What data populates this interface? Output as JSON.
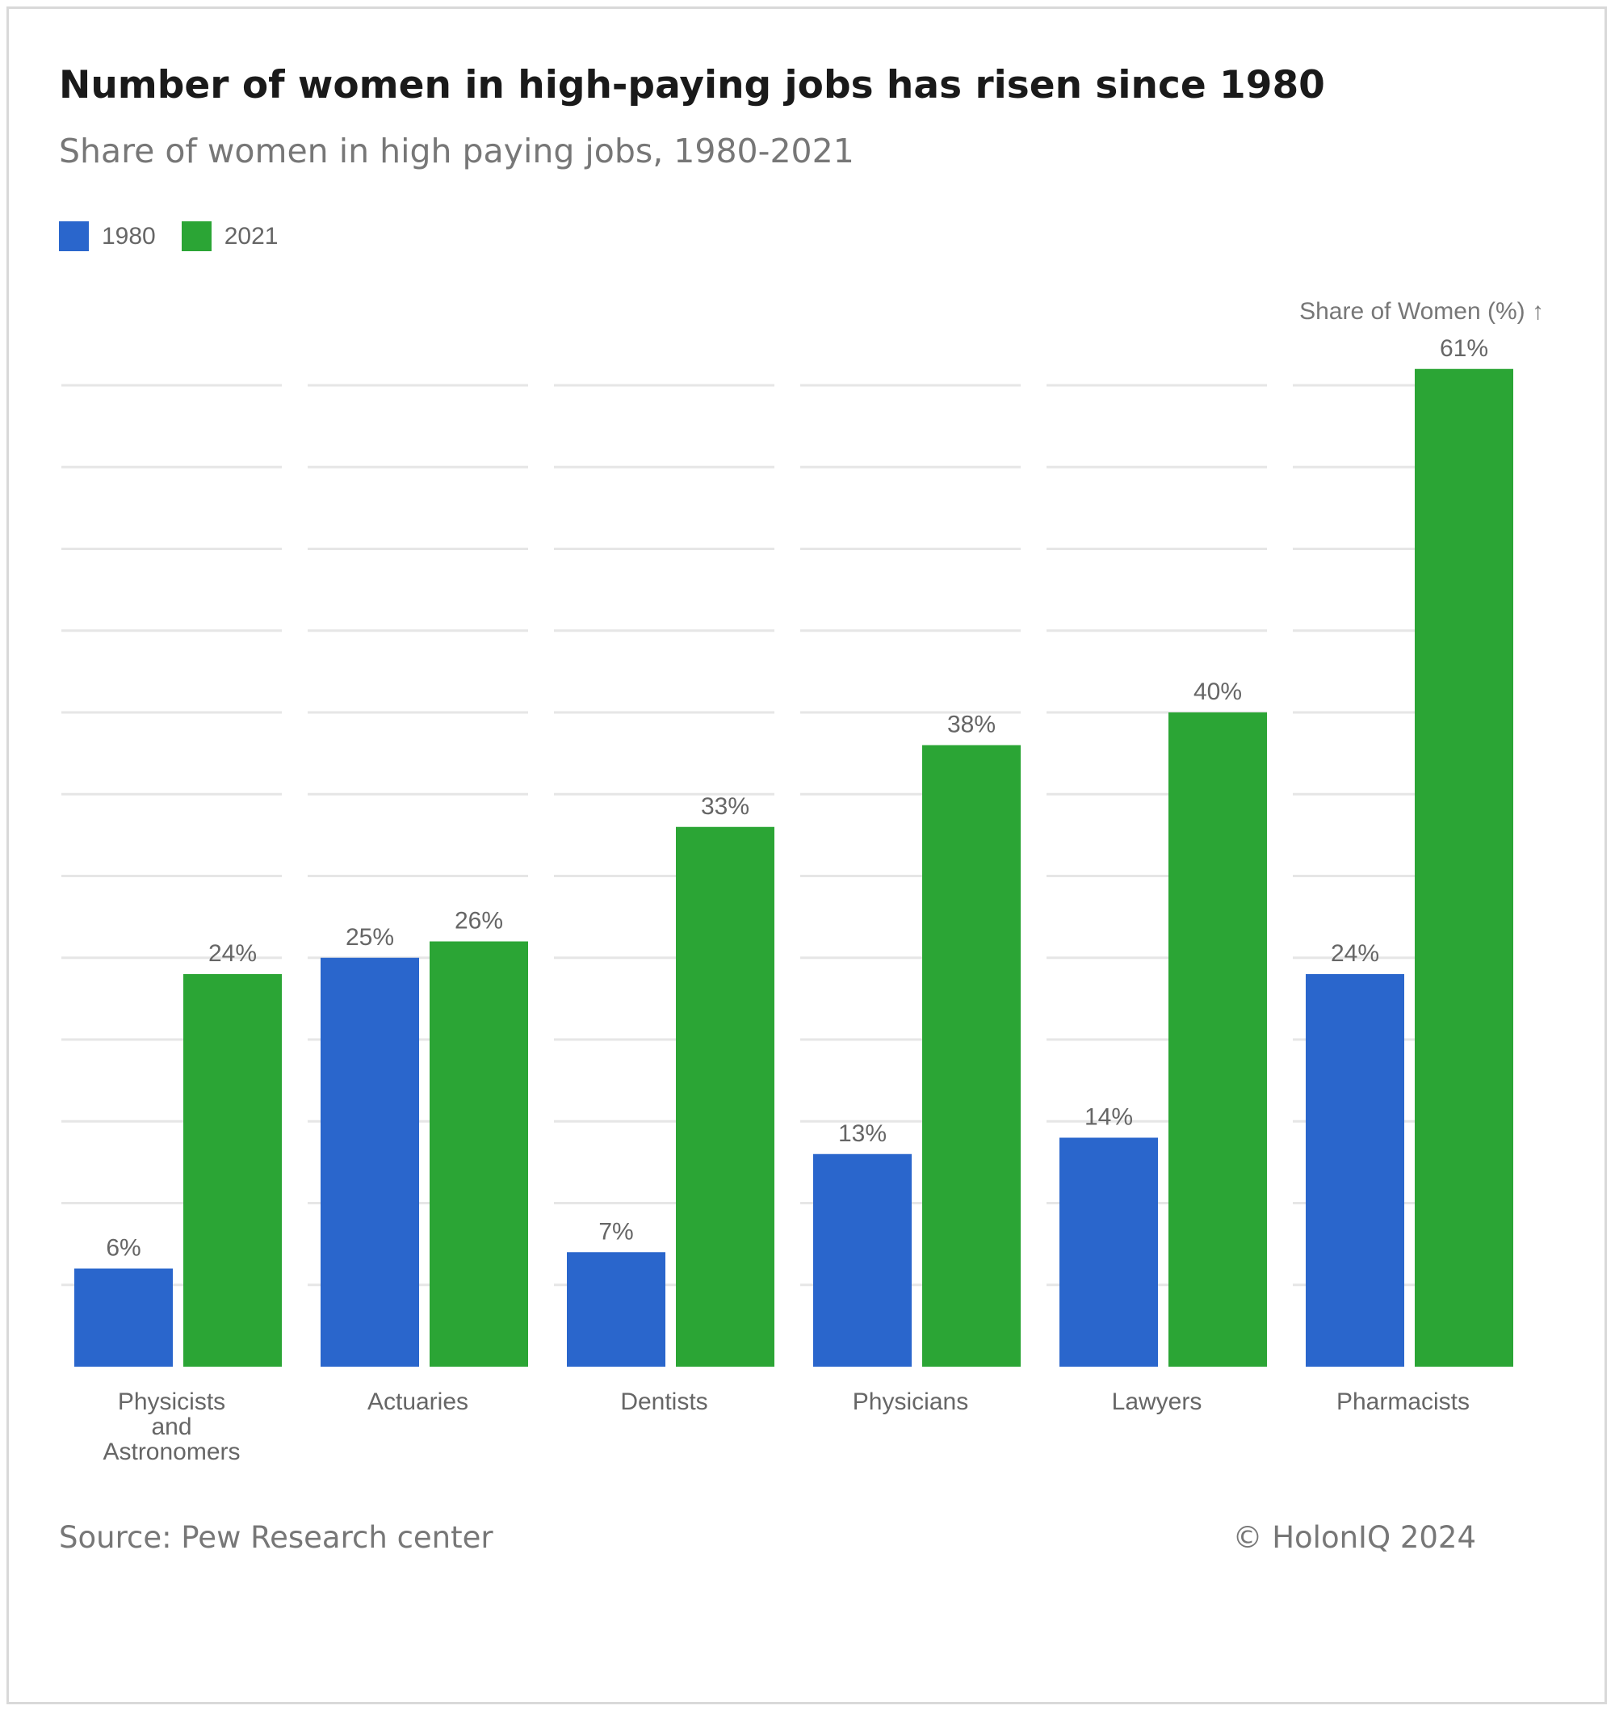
{
  "chart_data": {
    "type": "bar",
    "title": "Number of women in high-paying jobs has risen since 1980",
    "subtitle": "Share of women in high paying jobs, 1980-2021",
    "ylabel": "Share of Women (%) ↑",
    "xlabel": "",
    "ylim": [
      0,
      60
    ],
    "grid": true,
    "categories": [
      [
        "Physicists",
        "and",
        "Astronomers"
      ],
      [
        "Actuaries"
      ],
      [
        "Dentists"
      ],
      [
        "Physicians"
      ],
      [
        "Lawyers"
      ],
      [
        "Pharmacists"
      ]
    ],
    "series": [
      {
        "name": "1980",
        "color": "#2a66cc",
        "values": [
          6,
          25,
          7,
          13,
          14,
          24
        ],
        "labels": [
          "6%",
          "25%",
          "7%",
          "13%",
          "14%",
          "24%"
        ]
      },
      {
        "name": "2021",
        "color": "#2ba535",
        "values": [
          24,
          26,
          33,
          38,
          40,
          61
        ],
        "labels": [
          "24%",
          "26%",
          "33%",
          "38%",
          "40%",
          "61%"
        ]
      }
    ]
  },
  "legend": {
    "items": [
      {
        "label": "1980",
        "color": "#2a66cc"
      },
      {
        "label": "2021",
        "color": "#2ba535"
      }
    ]
  },
  "footer": {
    "source": "Source: Pew Research center",
    "copyright": "© HolonIQ 2024"
  }
}
